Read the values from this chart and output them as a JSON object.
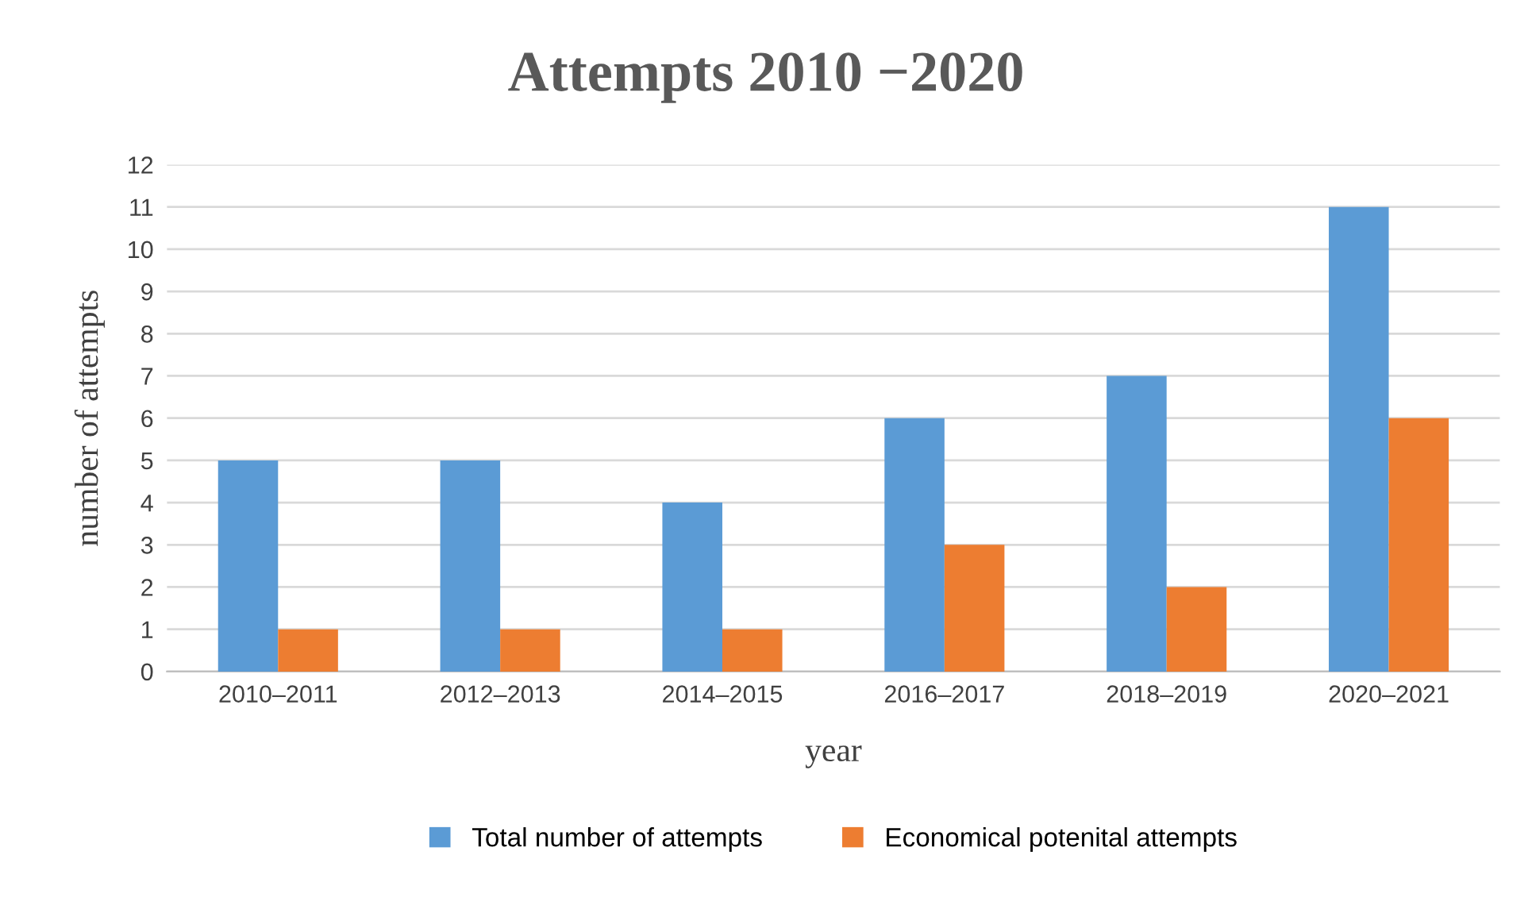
{
  "chart_data": {
    "type": "bar",
    "title": "Attempts 2010 −2020",
    "xlabel": "year",
    "ylabel": "number of attempts",
    "categories": [
      "2010–2011",
      "2012–2013",
      "2014–2015",
      "2016–2017",
      "2018–2019",
      "2020–2021"
    ],
    "series": [
      {
        "name": "Total number of attempts",
        "color": "#5b9bd5",
        "values": [
          5,
          5,
          4,
          6,
          7,
          11
        ]
      },
      {
        "name": "Economical potenital attempts",
        "color": "#ed7d31",
        "values": [
          1,
          1,
          1,
          3,
          2,
          6
        ]
      }
    ],
    "ylim": [
      0,
      12
    ],
    "yticks": [
      0,
      1,
      2,
      3,
      4,
      5,
      6,
      7,
      8,
      9,
      10,
      11,
      12
    ],
    "grid": "y",
    "legend": "bottom"
  }
}
